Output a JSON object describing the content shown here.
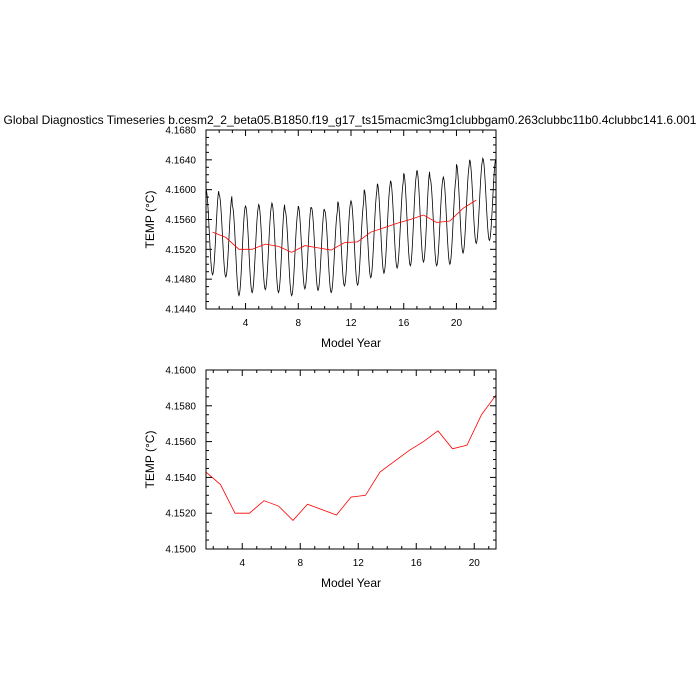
{
  "title": "Global Diagnostics Timeseries b.cesm2_2_beta05.B1850.f19_g17_ts15macmic3mg1clubbgam0.263clubbc11b0.4clubbc141.6.001",
  "colors": {
    "monthly": "#000000",
    "annual": "#ff0000",
    "axes": "#000000"
  },
  "chart_data": [
    {
      "type": "line",
      "xlabel": "Model Year",
      "ylabel": "TEMP (°C)",
      "xlim": [
        1,
        23
      ],
      "ylim": [
        4.144,
        4.168
      ],
      "xticks": [
        4,
        8,
        12,
        16,
        20
      ],
      "xtick_labels": [
        "4",
        "8",
        "12",
        "16",
        "20"
      ],
      "yticks": [
        4.144,
        4.148,
        4.152,
        4.156,
        4.16,
        4.164,
        4.168
      ],
      "ytick_labels": [
        "4.1440",
        "4.1480",
        "4.1520",
        "4.1560",
        "4.1600",
        "4.1640",
        "4.1680"
      ],
      "grid": false,
      "series": [
        {
          "color": "#000000",
          "x": [
            1.5,
            2.5,
            3.5,
            4.5,
            5.5,
            6.5,
            7.5,
            8.5,
            9.5,
            10.5,
            11.5,
            12.5,
            13.5,
            14.5,
            15.5,
            16.5,
            17.5,
            18.5,
            19.5,
            20.5,
            21.5,
            22.5
          ],
          "mean": [
            4.1543,
            4.1536,
            4.152,
            4.152,
            4.1527,
            4.1524,
            4.1516,
            4.1525,
            4.1522,
            4.1519,
            4.1529,
            4.153,
            4.1543,
            4.1549,
            4.1555,
            4.156,
            4.1566,
            4.1556,
            4.1558,
            4.1575,
            4.1586,
            4.159
          ],
          "min": [
            4.1486,
            4.1483,
            4.1458,
            4.1462,
            4.1466,
            4.1462,
            4.1458,
            4.1467,
            4.1465,
            4.1462,
            4.1471,
            4.1472,
            4.1482,
            4.1488,
            4.1495,
            4.1498,
            4.1503,
            4.1498,
            4.15,
            4.1515,
            4.1528,
            4.1532
          ],
          "max": [
            4.16,
            4.1593,
            4.1578,
            4.1578,
            4.158,
            4.1582,
            4.1572,
            4.1578,
            4.1576,
            4.1572,
            4.1584,
            4.1585,
            4.16,
            4.1608,
            4.1612,
            4.1622,
            4.1626,
            4.1615,
            4.1617,
            4.1634,
            4.164,
            4.1642
          ]
        },
        {
          "color": "#ff0000",
          "x": [
            1.5,
            2.5,
            3.5,
            4.5,
            5.5,
            6.5,
            7.5,
            8.5,
            9.5,
            10.5,
            11.5,
            12.5,
            13.5,
            14.5,
            15.5,
            16.5,
            17.5,
            18.5,
            19.5,
            20.5,
            21.5
          ],
          "y": [
            4.1543,
            4.1536,
            4.152,
            4.152,
            4.1527,
            4.1524,
            4.1516,
            4.1525,
            4.1522,
            4.1519,
            4.1529,
            4.153,
            4.1543,
            4.1549,
            4.1555,
            4.156,
            4.1566,
            4.1556,
            4.1558,
            4.1575,
            4.1586
          ]
        }
      ]
    },
    {
      "type": "line",
      "xlabel": "Model Year",
      "ylabel": "TEMP (°C)",
      "xlim": [
        1.5,
        21.5
      ],
      "ylim": [
        4.15,
        4.16
      ],
      "xticks": [
        4,
        8,
        12,
        16,
        20
      ],
      "xtick_labels": [
        "4",
        "8",
        "12",
        "16",
        "20"
      ],
      "yticks": [
        4.15,
        4.152,
        4.154,
        4.156,
        4.158,
        4.16
      ],
      "ytick_labels": [
        "4.1500",
        "4.1520",
        "4.1540",
        "4.1560",
        "4.1580",
        "4.1600"
      ],
      "grid": false,
      "series": [
        {
          "color": "#ff0000",
          "x": [
            1.5,
            2.5,
            3.5,
            4.5,
            5.5,
            6.5,
            7.5,
            8.5,
            9.5,
            10.5,
            11.5,
            12.5,
            13.5,
            14.5,
            15.5,
            16.5,
            17.5,
            18.5,
            19.5,
            20.5,
            21.5
          ],
          "y": [
            4.1543,
            4.1536,
            4.152,
            4.152,
            4.1527,
            4.1524,
            4.1516,
            4.1525,
            4.1522,
            4.1519,
            4.1529,
            4.153,
            4.1543,
            4.1549,
            4.1555,
            4.156,
            4.1566,
            4.1556,
            4.1558,
            4.1575,
            4.1586
          ]
        }
      ]
    }
  ]
}
